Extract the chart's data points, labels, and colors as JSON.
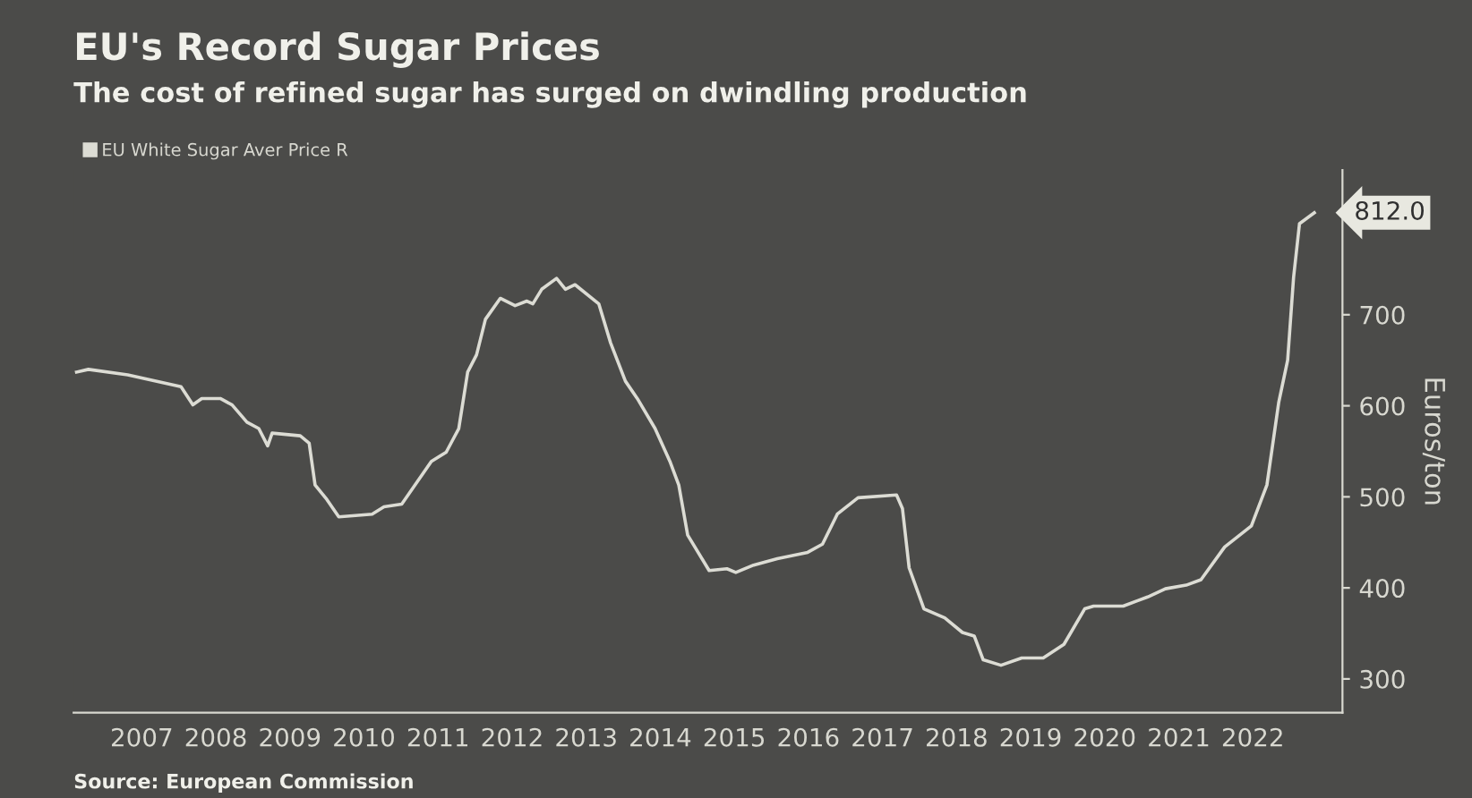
{
  "chart_data": {
    "type": "line",
    "title": "EU's Record Sugar Prices",
    "subtitle": "The cost of refined sugar has surged on dwindling production",
    "ylabel": "Euros/ton",
    "x": [
      2006.62,
      2006.78,
      2007.31,
      2008.03,
      2008.19,
      2008.31,
      2008.56,
      2008.72,
      2008.92,
      2009.08,
      2009.2,
      2009.26,
      2009.64,
      2009.76,
      2009.84,
      2010.0,
      2010.16,
      2010.61,
      2010.77,
      2011.01,
      2011.41,
      2011.61,
      2011.78,
      2011.9,
      2012.02,
      2012.14,
      2012.34,
      2012.54,
      2012.7,
      2012.78,
      2012.9,
      2013.1,
      2013.22,
      2013.35,
      2013.67,
      2013.83,
      2014.03,
      2014.19,
      2014.43,
      2014.63,
      2014.75,
      2014.87,
      2015.16,
      2015.4,
      2015.52,
      2015.76,
      2016.08,
      2016.49,
      2016.69,
      2016.89,
      2017.17,
      2017.69,
      2017.77,
      2017.86,
      2018.06,
      2018.34,
      2018.58,
      2018.74,
      2018.86,
      2019.1,
      2019.38,
      2019.67,
      2019.95,
      2020.23,
      2020.35,
      2020.75,
      2021.08,
      2021.32,
      2021.6,
      2021.8,
      2022.12,
      2022.48,
      2022.69,
      2022.85,
      2022.97,
      2023.05,
      2023.13,
      2023.33
    ],
    "series": [
      {
        "name": "EU White Sugar Aver Price R",
        "color": "#dcdcd4",
        "values": [
          637,
          640,
          634,
          621,
          601,
          608,
          608,
          601,
          582,
          575,
          556,
          570,
          567,
          559,
          513,
          497,
          478,
          481,
          489,
          492,
          539,
          549,
          575,
          637,
          656,
          695,
          718,
          710,
          715,
          712,
          728,
          740,
          728,
          733,
          712,
          669,
          627,
          608,
          575,
          539,
          513,
          458,
          419,
          421,
          417,
          425,
          432,
          439,
          448,
          481,
          499,
          502,
          487,
          422,
          377,
          367,
          351,
          347,
          321,
          315,
          323,
          323,
          338,
          377,
          380,
          380,
          390,
          399,
          403,
          409,
          445,
          468,
          513,
          604,
          650,
          741,
          800,
          812
        ]
      }
    ],
    "xlim": [
      2006.58,
      2023.71
    ],
    "ylim": [
      263,
      859
    ],
    "xticks": [
      {
        "value": 2007.5,
        "label": "2007"
      },
      {
        "value": 2008.5,
        "label": "2008"
      },
      {
        "value": 2009.5,
        "label": "2009"
      },
      {
        "value": 2010.5,
        "label": "2010"
      },
      {
        "value": 2011.5,
        "label": "2011"
      },
      {
        "value": 2012.5,
        "label": "2012"
      },
      {
        "value": 2013.5,
        "label": "2013"
      },
      {
        "value": 2014.5,
        "label": "2014"
      },
      {
        "value": 2015.5,
        "label": "2015"
      },
      {
        "value": 2016.5,
        "label": "2016"
      },
      {
        "value": 2017.5,
        "label": "2017"
      },
      {
        "value": 2018.5,
        "label": "2018"
      },
      {
        "value": 2019.5,
        "label": "2019"
      },
      {
        "value": 2020.5,
        "label": "2020"
      },
      {
        "value": 2021.5,
        "label": "2021"
      },
      {
        "value": 2022.5,
        "label": "2022"
      }
    ],
    "yticks": [
      300,
      400,
      500,
      600,
      700
    ],
    "annotations": [
      {
        "text": "812.0",
        "x": 2023.33,
        "y": 812
      },
      "Source: European Commission"
    ],
    "legend": "top left",
    "grid": false,
    "marker": "none",
    "line_style": "solid"
  }
}
